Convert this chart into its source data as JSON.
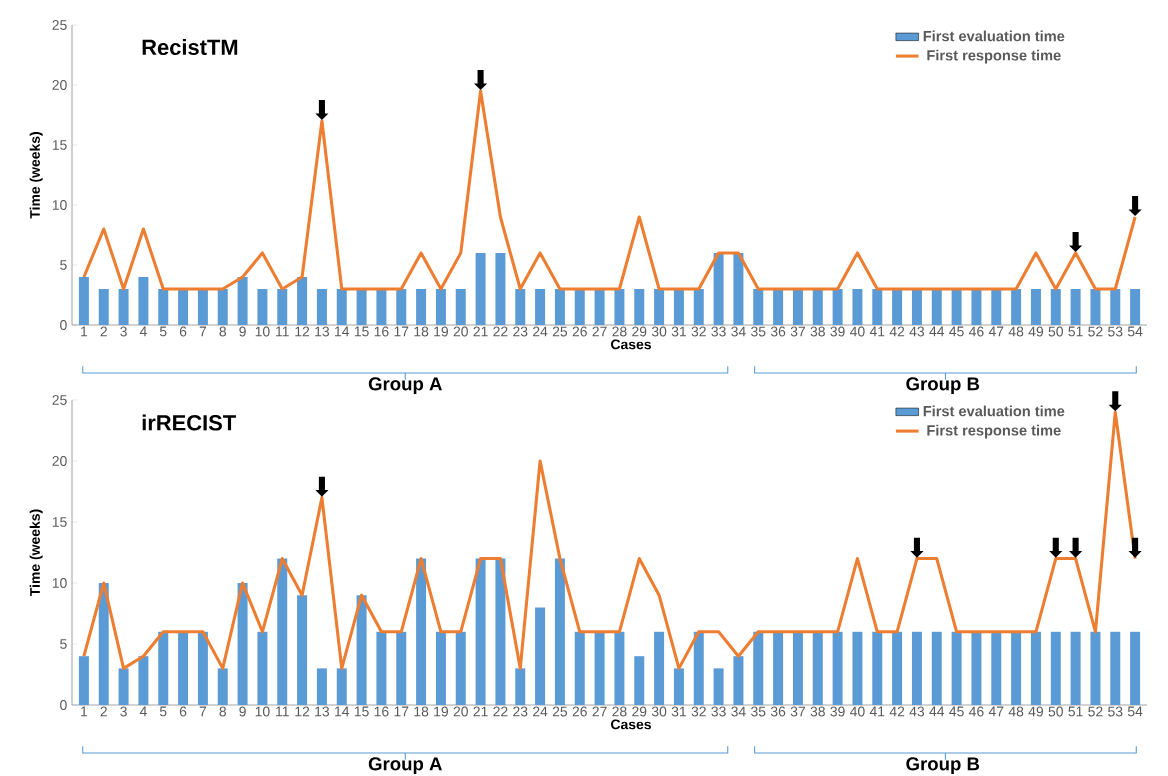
{
  "chart_data": [
    {
      "type": "bar",
      "title": "RecistTM",
      "xlabel": "Cases",
      "ylabel": "Time (weeks)",
      "categories": [
        "1",
        "2",
        "3",
        "4",
        "5",
        "6",
        "7",
        "8",
        "9",
        "10",
        "11",
        "12",
        "13",
        "14",
        "15",
        "16",
        "17",
        "18",
        "19",
        "20",
        "21",
        "22",
        "23",
        "24",
        "25",
        "26",
        "27",
        "28",
        "29",
        "30",
        "31",
        "32",
        "33",
        "34",
        "35",
        "36",
        "37",
        "38",
        "39",
        "40",
        "41",
        "42",
        "43",
        "44",
        "45",
        "46",
        "47",
        "48",
        "49",
        "50",
        "51",
        "52",
        "53",
        "54"
      ],
      "series": [
        {
          "name": "First evaluation time",
          "color": "#5b9bd5",
          "values": [
            4,
            3,
            3,
            4,
            3,
            3,
            3,
            3,
            4,
            3,
            3,
            4,
            3,
            3,
            3,
            3,
            3,
            3,
            3,
            3,
            6,
            6,
            3,
            3,
            3,
            3,
            3,
            3,
            3,
            3,
            3,
            3,
            6,
            6,
            3,
            3,
            3,
            3,
            3,
            3,
            3,
            3,
            3,
            3,
            3,
            3,
            3,
            3,
            3,
            3,
            3,
            3,
            3,
            3
          ]
        },
        {
          "name": "First response time",
          "type": "line",
          "color": "#ed7d31",
          "values": [
            4,
            8,
            3,
            8,
            3,
            3,
            3,
            3,
            4,
            6,
            3,
            4,
            17,
            3,
            3,
            3,
            3,
            6,
            3,
            6,
            19.5,
            9,
            3,
            6,
            3,
            3,
            3,
            3,
            9,
            3,
            3,
            3,
            6,
            6,
            3,
            3,
            3,
            3,
            3,
            6,
            3,
            3,
            3,
            3,
            3,
            3,
            3,
            3,
            6,
            3,
            6,
            3,
            3,
            9
          ]
        }
      ],
      "ylim": [
        0,
        25
      ],
      "yticks": [
        0,
        5,
        10,
        15,
        20,
        25
      ],
      "legend": "top right",
      "annotations": [
        "Group A",
        "Group B",
        {
          "text": "⬇",
          "x": "13",
          "y": 17
        },
        {
          "text": "⬇",
          "x": "21",
          "y": 19.5
        },
        {
          "text": "⬇",
          "x": "51",
          "y": 6
        },
        {
          "text": "⬇",
          "x": "54",
          "y": 9
        }
      ]
    },
    {
      "type": "bar",
      "title": "irRECIST",
      "xlabel": "Cases",
      "ylabel": "Time (weeks)",
      "categories": [
        "1",
        "2",
        "3",
        "4",
        "5",
        "6",
        "7",
        "8",
        "9",
        "10",
        "11",
        "12",
        "13",
        "14",
        "15",
        "16",
        "17",
        "18",
        "19",
        "20",
        "21",
        "22",
        "23",
        "24",
        "25",
        "26",
        "27",
        "28",
        "29",
        "30",
        "31",
        "32",
        "33",
        "34",
        "35",
        "36",
        "37",
        "38",
        "39",
        "40",
        "41",
        "42",
        "43",
        "44",
        "45",
        "46",
        "47",
        "48",
        "49",
        "50",
        "51",
        "52",
        "53",
        "54"
      ],
      "series": [
        {
          "name": "First evaluation time",
          "color": "#5b9bd5",
          "values": [
            4,
            10,
            3,
            4,
            6,
            6,
            6,
            3,
            10,
            6,
            12,
            9,
            3,
            3,
            9,
            6,
            6,
            12,
            6,
            6,
            12,
            12,
            3,
            8,
            12,
            6,
            6,
            6,
            4,
            6,
            3,
            6,
            3,
            4,
            6,
            6,
            6,
            6,
            6,
            6,
            6,
            6,
            6,
            6,
            6,
            6,
            6,
            6,
            6,
            6,
            6,
            6,
            6,
            6
          ]
        },
        {
          "name": "First response time",
          "type": "line",
          "color": "#ed7d31",
          "values": [
            4,
            10,
            3,
            4,
            6,
            6,
            6,
            3,
            10,
            6,
            12,
            9,
            17,
            3,
            9,
            6,
            6,
            12,
            6,
            6,
            12,
            12,
            3,
            20,
            12,
            6,
            6,
            6,
            12,
            9,
            3,
            6,
            6,
            4,
            6,
            6,
            6,
            6,
            6,
            12,
            6,
            6,
            12,
            12,
            6,
            6,
            6,
            6,
            6,
            12,
            12,
            6,
            24,
            12
          ]
        }
      ],
      "ylim": [
        0,
        25
      ],
      "yticks": [
        0,
        5,
        10,
        15,
        20,
        25
      ],
      "legend": "top right",
      "annotations": [
        "Group A",
        "Group B",
        {
          "text": "⬇",
          "x": "13",
          "y": 17
        },
        {
          "text": "⬇",
          "x": "43",
          "y": 12
        },
        {
          "text": "⬇",
          "x": "50",
          "y": 12
        },
        {
          "text": "⬇",
          "x": "51",
          "y": 12
        },
        {
          "text": "⬇",
          "x": "53",
          "y": 24
        },
        {
          "text": "⬇",
          "x": "54",
          "y": 12
        }
      ]
    }
  ]
}
